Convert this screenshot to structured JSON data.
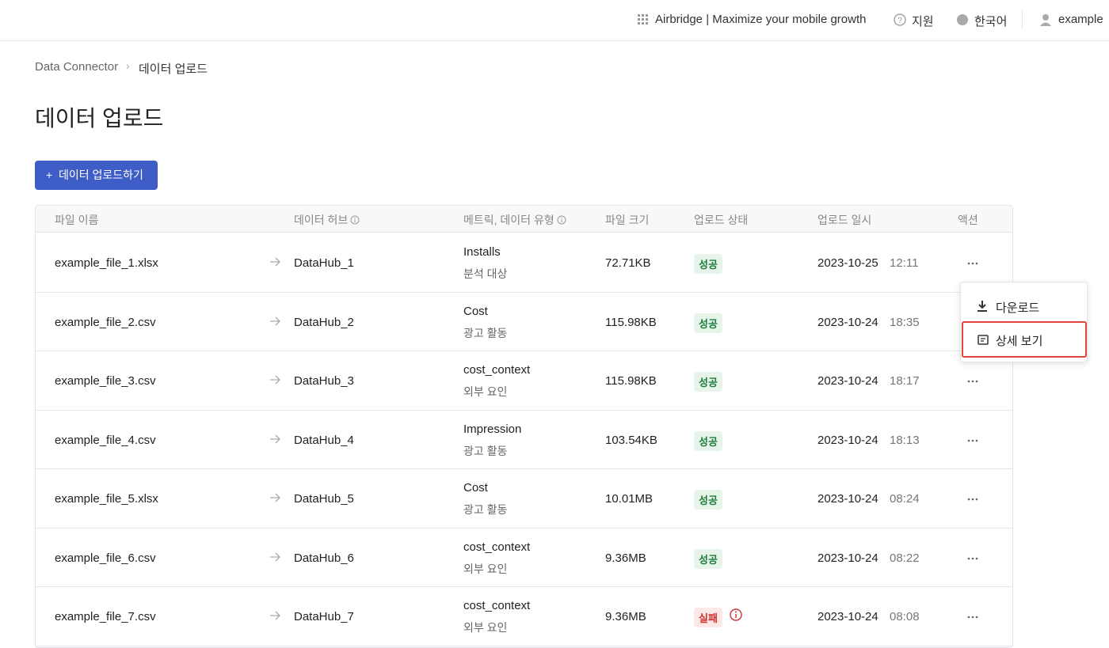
{
  "header": {
    "brand": "Airbridge | Maximize your mobile growth",
    "support": "지원",
    "language": "한국어",
    "user": "example"
  },
  "breadcrumb": {
    "parent": "Data Connector",
    "current": "데이터 업로드"
  },
  "title": "데이터 업로드",
  "upload_button": "데이터 업로드하기",
  "table": {
    "columns": [
      "파일 이름",
      "데이터 허브",
      "메트릭, 데이터 유형",
      "파일 크기",
      "업로드 상태",
      "업로드 일시",
      "액션"
    ],
    "rows": [
      {
        "file": "example_file_1.xlsx",
        "hub": "DataHub_1",
        "metric": "Installs",
        "type": "분석 대상",
        "size": "72.71KB",
        "status": "성공",
        "date": "2023-10-25",
        "time": "12:11"
      },
      {
        "file": "example_file_2.csv",
        "hub": "DataHub_2",
        "metric": "Cost",
        "type": "광고 활동",
        "size": "115.98KB",
        "status": "성공",
        "date": "2023-10-24",
        "time": "18:35"
      },
      {
        "file": "example_file_3.csv",
        "hub": "DataHub_3",
        "metric": "cost_context",
        "type": "외부 요인",
        "size": "115.98KB",
        "status": "성공",
        "date": "2023-10-24",
        "time": "18:17"
      },
      {
        "file": "example_file_4.csv",
        "hub": "DataHub_4",
        "metric": "Impression",
        "type": "광고 활동",
        "size": "103.54KB",
        "status": "성공",
        "date": "2023-10-24",
        "time": "18:13"
      },
      {
        "file": "example_file_5.xlsx",
        "hub": "DataHub_5",
        "metric": "Cost",
        "type": "광고 활동",
        "size": "10.01MB",
        "status": "성공",
        "date": "2023-10-24",
        "time": "08:24"
      },
      {
        "file": "example_file_6.csv",
        "hub": "DataHub_6",
        "metric": "cost_context",
        "type": "외부 요인",
        "size": "9.36MB",
        "status": "성공",
        "date": "2023-10-24",
        "time": "08:22"
      },
      {
        "file": "example_file_7.csv",
        "hub": "DataHub_7",
        "metric": "cost_context",
        "type": "외부 요인",
        "size": "9.36MB",
        "status": "실패",
        "date": "2023-10-24",
        "time": "08:08"
      }
    ]
  },
  "menu": {
    "download": "다운로드",
    "details": "상세 보기"
  }
}
